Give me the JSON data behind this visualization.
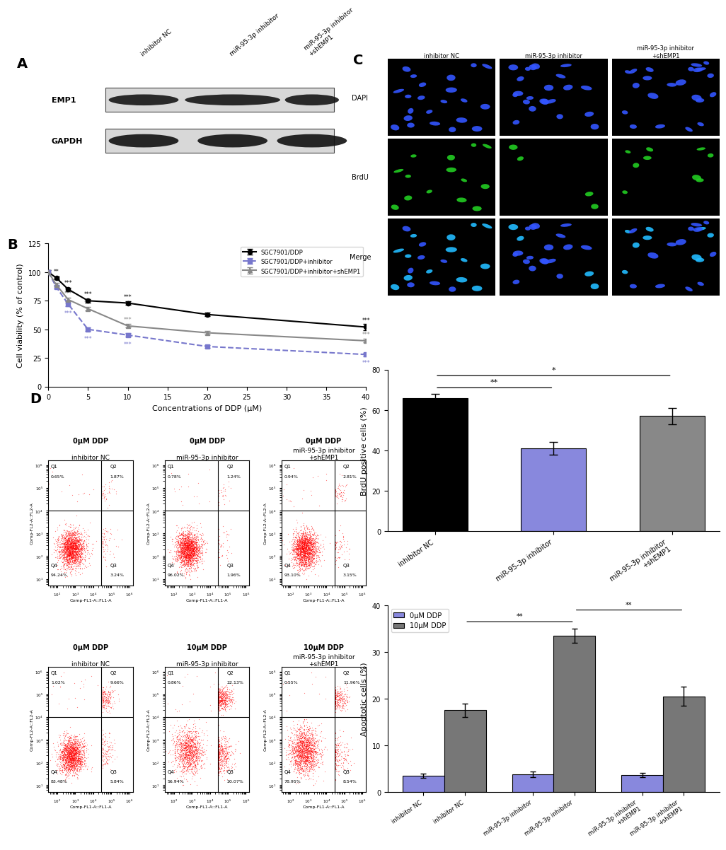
{
  "panel_A": {
    "label": "A",
    "emp1_intensities": [
      0.55,
      0.85,
      0.45
    ],
    "gapdh_intensities": [
      0.85,
      0.85,
      0.85
    ],
    "col_labels": [
      "inhibitor NC",
      "miR-95-3p inhibitor",
      "miR-95-3p inhibitor\n+shEMP1"
    ]
  },
  "panel_B": {
    "label": "B",
    "x": [
      0,
      1,
      2.5,
      5,
      10,
      20,
      40
    ],
    "line1_y": [
      100,
      95,
      85,
      75,
      73,
      63,
      52
    ],
    "line2_y": [
      100,
      87,
      72,
      50,
      45,
      35,
      28
    ],
    "line3_y": [
      100,
      89,
      76,
      68,
      53,
      47,
      40
    ],
    "line1_err": [
      1.5,
      1.5,
      1.5,
      1.5,
      1.5,
      1.5,
      2.5
    ],
    "line2_err": [
      1.5,
      1.5,
      1.5,
      1.5,
      1.5,
      1.5,
      1.5
    ],
    "line3_err": [
      1.5,
      1.5,
      1.5,
      1.5,
      1.5,
      1.5,
      1.5
    ],
    "line1_label": "SGC7901/DDP",
    "line2_label": "SGC7901/DDP+inhibitor",
    "line3_label": "SGC7901/DDP+inhibitor+shEMP1",
    "line1_color": "#000000",
    "line2_color": "#7777cc",
    "line3_color": "#888888",
    "xlabel": "Concentrations of DDP (μM)",
    "ylabel": "Cell viability (% of control)",
    "xlim": [
      0,
      40
    ],
    "ylim": [
      0,
      125
    ],
    "yticks": [
      0,
      25,
      50,
      75,
      100,
      125
    ],
    "xticks": [
      0,
      5,
      10,
      15,
      20,
      25,
      30,
      35,
      40
    ]
  },
  "panel_C_bar": {
    "values": [
      66,
      41,
      57
    ],
    "errors": [
      2,
      3,
      4
    ],
    "colors": [
      "#000000",
      "#8888dd",
      "#888888"
    ],
    "ylabel": "BrdU positive cells (%)",
    "ylim": [
      0,
      80
    ],
    "yticks": [
      0,
      20,
      40,
      60,
      80
    ]
  },
  "panel_D_bar": {
    "values_0uM": [
      3.5,
      3.8,
      3.6
    ],
    "values_10uM": [
      17.5,
      33.5,
      20.5
    ],
    "errors_0uM": [
      0.5,
      0.6,
      0.5
    ],
    "errors_10uM": [
      1.5,
      1.5,
      2.0
    ],
    "color_0uM": "#8888dd",
    "color_10uM": "#777777",
    "ylabel": "Apoptotic cells (%)",
    "ylim": [
      0,
      40
    ],
    "yticks": [
      0,
      10,
      20,
      30,
      40
    ],
    "legend_0uM": "0μM DDP",
    "legend_10uM": "10μM DDP"
  },
  "flow_top": [
    {
      "label1": "inhibitor NC",
      "label2": "0μM DDP",
      "Q1": "0.65%",
      "Q2": "1.87%",
      "Q4": "94.24%",
      "Q3": "3.24%",
      "seed": 1
    },
    {
      "label1": "miR-95-3p inhibitor",
      "label2": "0μM DDP",
      "Q1": "0.78%",
      "Q2": "1.24%",
      "Q4": "96.02%",
      "Q3": "1.96%",
      "seed": 2
    },
    {
      "label1": "miR-95-3p inhibitor\n+shEMP1",
      "label2": "0μM DDP",
      "Q1": "0.94%",
      "Q2": "2.81%",
      "Q4": "93.10%",
      "Q3": "3.15%",
      "seed": 3
    }
  ],
  "flow_bottom": [
    {
      "label1": "inhibitor NC",
      "label2": "0μM DDP",
      "Q1": "1.02%",
      "Q2": "9.66%",
      "Q4": "83.48%",
      "Q3": "5.84%",
      "seed": 4
    },
    {
      "label1": "miR-95-3p inhibitor",
      "label2": "10μM DDP",
      "Q1": "0.86%",
      "Q2": "22.13%",
      "Q4": "56.94%",
      "Q3": "20.07%",
      "seed": 5
    },
    {
      "label1": "miR-95-3p inhibitor\n+shEMP1",
      "label2": "10μM DDP",
      "Q1": "0.55%",
      "Q2": "11.96%",
      "Q4": "78.95%",
      "Q3": "8.54%",
      "seed": 6
    }
  ],
  "brdu_counts": [
    14,
    4,
    9
  ],
  "row_labels_C": [
    "DAPI",
    "BrdU",
    "Merge"
  ],
  "col_labels_C": [
    "inhibitor NC",
    "miR-95-3p inhibitor",
    "miR-95-3p inhibitor\n+shEMP1"
  ]
}
